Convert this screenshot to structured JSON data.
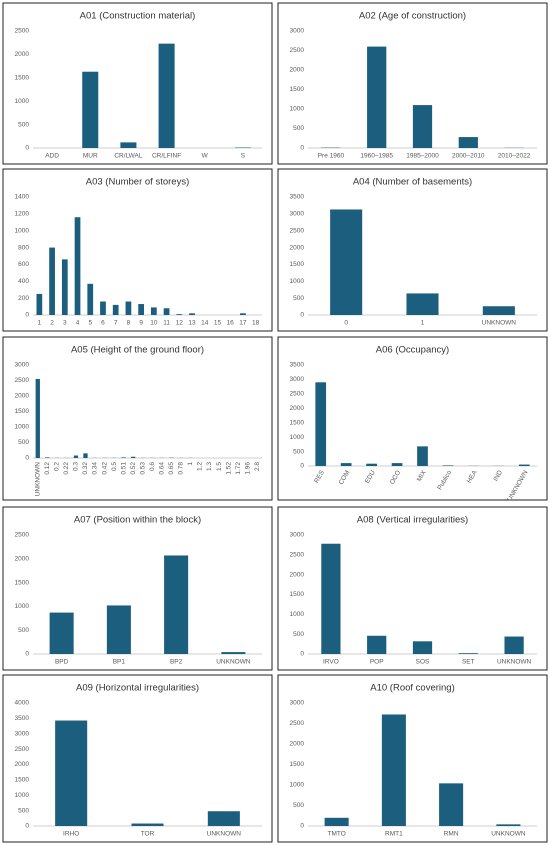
{
  "chart_data": [
    {
      "type": "bar",
      "title": "A01 (Construction material)",
      "categories": [
        "ADD",
        "MUR",
        "CR/LWAL",
        "CR/LFINF",
        "W",
        "S"
      ],
      "values": [
        0,
        1630,
        120,
        2230,
        0,
        10
      ],
      "color": "#1b5e7e",
      "ylim": [
        0,
        2500
      ],
      "yticks": [
        0,
        500,
        1000,
        1500,
        2000,
        2500
      ]
    },
    {
      "type": "bar",
      "title": "A02 (Age of construction)",
      "categories": [
        "Pre 1960",
        "1960–1985",
        "1985–2000",
        "2000–2010",
        "2010–2022"
      ],
      "values": [
        10,
        2600,
        1100,
        280,
        5
      ],
      "color": "#1b5e7e",
      "ylim": [
        0,
        3000
      ],
      "yticks": [
        0,
        500,
        1000,
        1500,
        2000,
        2500,
        3000
      ]
    },
    {
      "type": "bar",
      "title": "A03 (Number of storeys)",
      "categories": [
        "1",
        "2",
        "3",
        "4",
        "5",
        "6",
        "7",
        "8",
        "9",
        "10",
        "11",
        "12",
        "13",
        "14",
        "15",
        "16",
        "17",
        "18"
      ],
      "values": [
        250,
        800,
        660,
        1160,
        370,
        160,
        120,
        160,
        130,
        90,
        80,
        10,
        20,
        0,
        0,
        0,
        20,
        0
      ],
      "color": "#1b5e7e",
      "ylim": [
        0,
        1400
      ],
      "yticks": [
        0,
        200,
        400,
        600,
        800,
        1000,
        1200,
        1400
      ]
    },
    {
      "type": "bar",
      "title": "A04 (Number of basements)",
      "categories": [
        "0",
        "1",
        "UNKNOWN"
      ],
      "values": [
        3130,
        640,
        260
      ],
      "color": "#1b5e7e",
      "ylim": [
        0,
        3500
      ],
      "yticks": [
        0,
        500,
        1000,
        1500,
        2000,
        2500,
        3000,
        3500
      ]
    },
    {
      "type": "bar",
      "title": "A05 (Height of the ground floor)",
      "categories": [
        "UNKNOWN",
        "0.12",
        "0.2",
        "0.22",
        "0.3",
        "0.32",
        "0.34",
        "0.42",
        "0.5",
        "0.51",
        "0.52",
        "0.53",
        "0.6",
        "0.64",
        "0.65",
        "0.78",
        "1",
        "1.2",
        "1.3",
        "1.5",
        "1.52",
        "1.72",
        "1.96",
        "2.8"
      ],
      "values": [
        2550,
        20,
        5,
        5,
        80,
        150,
        5,
        5,
        5,
        20,
        40,
        5,
        5,
        5,
        10,
        5,
        5,
        0,
        0,
        0,
        0,
        0,
        0,
        0
      ],
      "color": "#1b5e7e",
      "ylim": [
        0,
        3000
      ],
      "yticks": [
        0,
        500,
        1000,
        1500,
        2000,
        2500,
        3000
      ]
    },
    {
      "type": "bar",
      "title": "A06 (Occupancy)",
      "categories": [
        "RES",
        "COM",
        "EDU",
        "OCO",
        "MIX",
        "Publico",
        "HEA",
        "IND",
        "UNKNOWN"
      ],
      "values": [
        2900,
        100,
        80,
        100,
        680,
        20,
        5,
        5,
        50
      ],
      "color": "#1b5e7e",
      "ylim": [
        0,
        3500
      ],
      "yticks": [
        0,
        500,
        1000,
        1500,
        2000,
        2500,
        3000,
        3500
      ]
    },
    {
      "type": "bar",
      "title": "A07 (Position within the block)",
      "categories": [
        "BPD",
        "BP1",
        "BP2",
        "UNKNOWN"
      ],
      "values": [
        870,
        1020,
        2070,
        40
      ],
      "color": "#1b5e7e",
      "ylim": [
        0,
        2500
      ],
      "yticks": [
        0,
        500,
        1000,
        1500,
        2000,
        2500
      ]
    },
    {
      "type": "bar",
      "title": "A08 (Vertical irregularities)",
      "categories": [
        "IRVO",
        "POP",
        "SOS",
        "SET",
        "UNKNOWN"
      ],
      "values": [
        2780,
        460,
        320,
        20,
        440
      ],
      "color": "#1b5e7e",
      "ylim": [
        0,
        3000
      ],
      "yticks": [
        0,
        500,
        1000,
        1500,
        2000,
        2500,
        3000
      ]
    },
    {
      "type": "bar",
      "title": "A09 (Horizontal irregularities)",
      "categories": [
        "IRHO",
        "TOR",
        "UNKNOWN"
      ],
      "values": [
        3430,
        80,
        480
      ],
      "color": "#1b5e7e",
      "ylim": [
        0,
        4000
      ],
      "yticks": [
        0,
        500,
        1000,
        1500,
        2000,
        2500,
        3000,
        3500,
        4000
      ]
    },
    {
      "type": "bar",
      "title": "A10 (Roof covering)",
      "categories": [
        "TMTO",
        "RMT1",
        "RMN",
        "UNKNOWN"
      ],
      "values": [
        200,
        2720,
        1040,
        40
      ],
      "color": "#1b5e7e",
      "ylim": [
        0,
        3000
      ],
      "yticks": [
        0,
        500,
        1000,
        1500,
        2000,
        2500,
        3000
      ]
    }
  ]
}
